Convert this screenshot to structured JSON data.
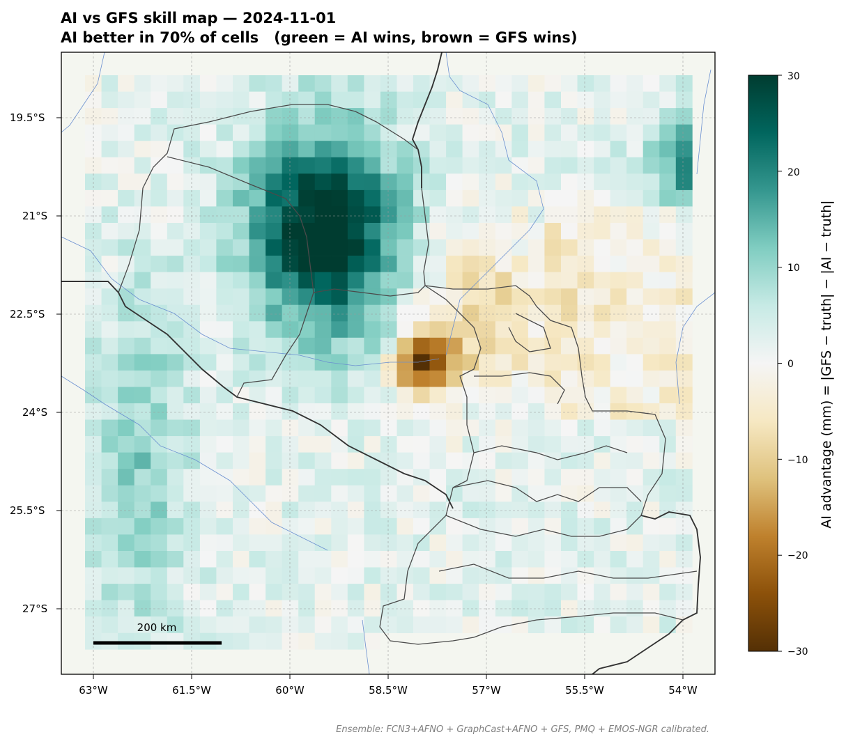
{
  "title": "AI vs GFS skill map — 2024-11-01",
  "subtitle": "AI better in 70% of cells   (green = AI wins, brown = GFS wins)",
  "colors": {
    "brown_dark": "#543005",
    "brown_mid": "#bf812d",
    "tan": "#f6e8c3",
    "neutral": "#f5f5f5",
    "teal_light": "#c7eae5",
    "teal_mid": "#35978f",
    "teal_dark": "#003c30",
    "ocean_bg": "#f4f6f0",
    "border": "#333333",
    "river": "#6a8fd0"
  },
  "map": {
    "x_ticks": [
      "63°W",
      "61.5°W",
      "60°W",
      "58.5°W",
      "57°W",
      "55.5°W",
      "54°W"
    ],
    "y_ticks": [
      "19.5°S",
      "21°S",
      "22.5°S",
      "24°S",
      "25.5°S",
      "27°S"
    ],
    "scale_bar_label": "200 km",
    "lon_range": [
      -63.5,
      -53.5
    ],
    "lat_range": [
      -18.5,
      -28
    ]
  },
  "colorbar": {
    "label": "AI advantage (mm) = |GFS − truth| − |AI − truth|",
    "ticks": [
      "30",
      "20",
      "10",
      "0",
      "−10",
      "−20",
      "−30"
    ],
    "range": [
      -30,
      30
    ]
  },
  "footer": "Ensemble: FCN3+AFNO + GraphCast+AFNO + GFS, PMQ + EMOS-NGR calibrated."
}
